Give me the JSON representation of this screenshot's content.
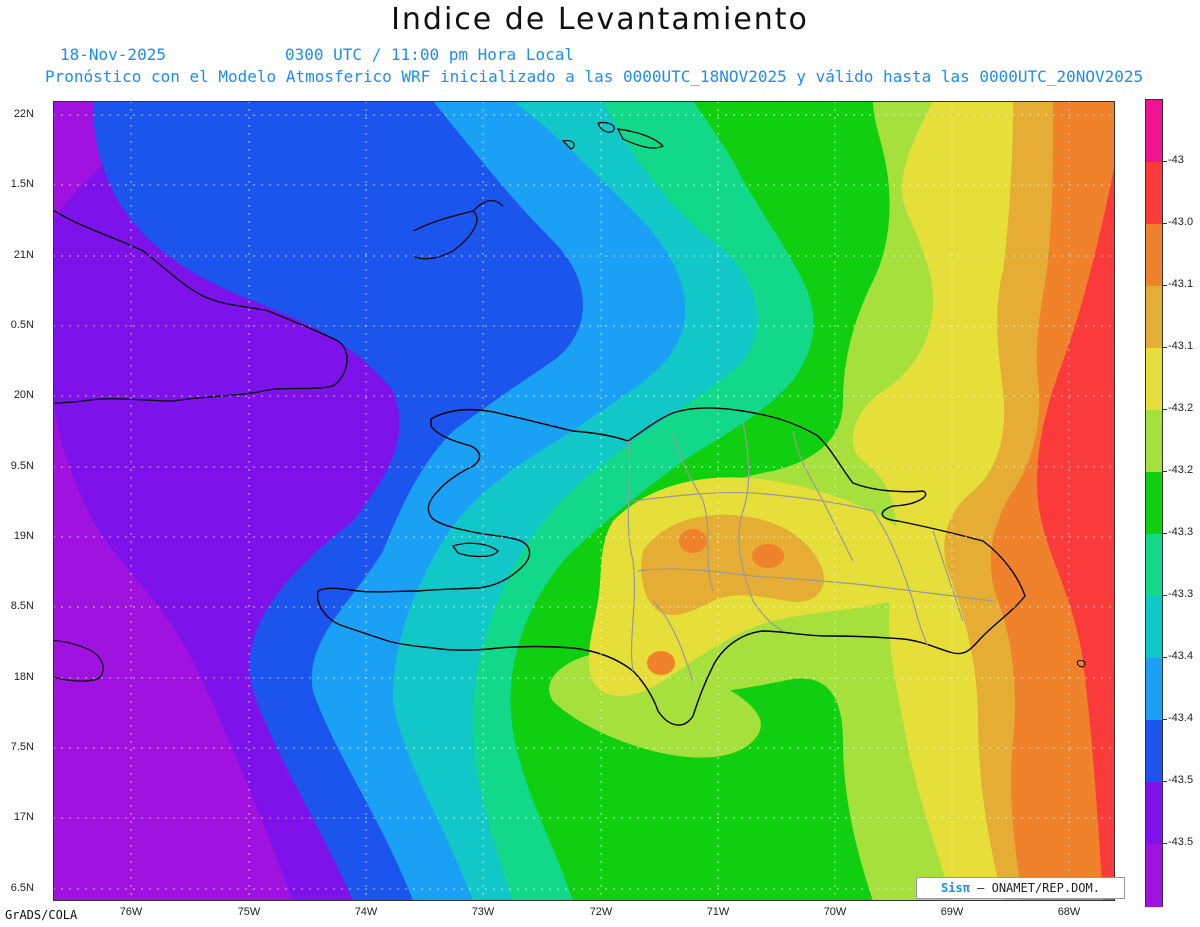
{
  "title": "Indice de Levantamiento",
  "date_line": "18-Nov-2025",
  "time_line": "0300 UTC / 11:00 pm Hora Local",
  "model_line": "Pronóstico con el Modelo Atmosferico WRF inicializado a las 0000UTC_18NOV2025 y válido hasta las  0000UTC_20NOV2025",
  "footer": "GrADS/COLA",
  "credit": {
    "logo": "Sisπ",
    "text": " – ONAMET/REP.DOM."
  },
  "lat_labels": [
    "22N",
    "1.5N",
    "21N",
    "0.5N",
    "20N",
    "9.5N",
    "19N",
    "8.5N",
    "18N",
    "7.5N",
    "17N",
    "6.5N"
  ],
  "lon_labels": [
    "76W",
    "75W",
    "74W",
    "73W",
    "72W",
    "71W",
    "70W",
    "69W",
    "68W"
  ],
  "colorbar": {
    "labels": [
      "-43",
      "-43.0",
      "-43.1",
      "-43.1",
      "-43.2",
      "-43.2",
      "-43.3",
      "-43.3",
      "-43.4",
      "-43.4",
      "-43.5",
      "-43.5"
    ],
    "colors": [
      "#f0128f",
      "#fb3b3b",
      "#f0822c",
      "#e6ad35",
      "#e6df3a",
      "#a6e03c",
      "#10cf10",
      "#12d98a",
      "#12c7c7",
      "#1aa0f5",
      "#1c54ee",
      "#7d12ea",
      "#9f12df"
    ]
  },
  "map": {
    "colors": {
      "violet": "#9f12df",
      "purple": "#7d12ea",
      "blue": "#1c54ee",
      "lightblue": "#1aa0f5",
      "cyan": "#12c7c7",
      "teal": "#12d98a",
      "green": "#10cf10",
      "lime": "#a6e03c",
      "yellow": "#e6df3a",
      "gold": "#e6ad35",
      "orange": "#f0822c",
      "red": "#fb3b3b"
    }
  }
}
